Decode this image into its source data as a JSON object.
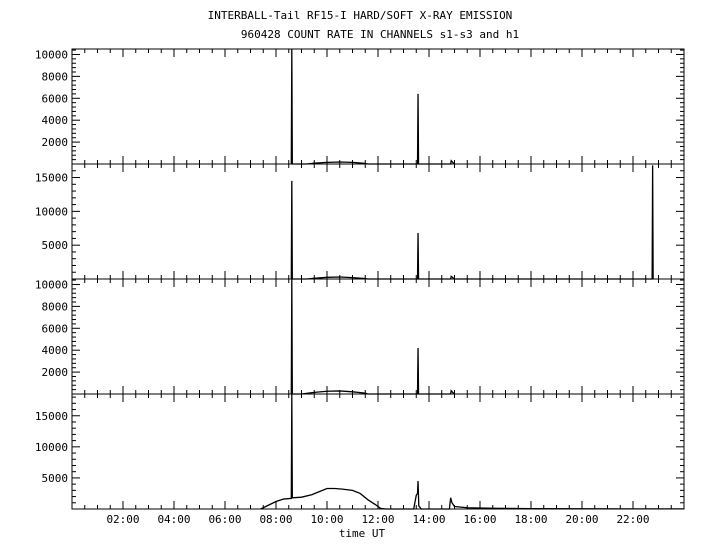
{
  "title": "INTERBALL-Tail RF15-I HARD/SOFT X-RAY EMISSION",
  "subtitle": "960428  COUNT RATE IN CHANNELS s1-s3 and h1",
  "chart_data": {
    "type": "line",
    "xlabel": "time UT",
    "xlim": [
      0,
      24
    ],
    "x_ticks": [
      2,
      4,
      6,
      8,
      10,
      12,
      14,
      16,
      18,
      20,
      22
    ],
    "x_tick_labels": [
      "02:00",
      "04:00",
      "06:00",
      "08:00",
      "10:00",
      "12:00",
      "14:00",
      "16:00",
      "18:00",
      "20:00",
      "22:00"
    ],
    "panels": [
      {
        "name": "s1",
        "ylim": [
          0,
          10500
        ],
        "y_ticks": [
          2000,
          4000,
          6000,
          8000,
          10000
        ],
        "y_tick_labels": [
          "2000",
          "4000",
          "6000",
          "8000",
          "10000"
        ],
        "points": [
          [
            8.6,
            0
          ],
          [
            8.62,
            10500
          ],
          [
            8.64,
            0
          ],
          [
            9.2,
            0
          ],
          [
            9.5,
            80
          ],
          [
            10,
            150
          ],
          [
            10.5,
            180
          ],
          [
            11,
            150
          ],
          [
            11.5,
            60
          ],
          [
            11.6,
            0
          ],
          [
            13.55,
            0
          ],
          [
            13.57,
            6400
          ],
          [
            13.59,
            0
          ],
          [
            14.85,
            0
          ],
          [
            14.87,
            300
          ],
          [
            14.95,
            100
          ],
          [
            15.0,
            0
          ]
        ]
      },
      {
        "name": "s2",
        "ylim": [
          0,
          17000
        ],
        "y_ticks": [
          5000,
          10000,
          15000
        ],
        "y_tick_labels": [
          "5000",
          "10000",
          "15000"
        ],
        "points": [
          [
            8.6,
            0
          ],
          [
            8.62,
            14500
          ],
          [
            8.64,
            0
          ],
          [
            9.2,
            0
          ],
          [
            9.5,
            100
          ],
          [
            10,
            250
          ],
          [
            10.5,
            300
          ],
          [
            11,
            200
          ],
          [
            11.5,
            80
          ],
          [
            11.6,
            0
          ],
          [
            13.55,
            0
          ],
          [
            13.57,
            6800
          ],
          [
            13.59,
            0
          ],
          [
            14.85,
            0
          ],
          [
            14.87,
            400
          ],
          [
            14.95,
            150
          ],
          [
            15.0,
            0
          ],
          [
            22.75,
            0
          ],
          [
            22.77,
            16800
          ],
          [
            22.79,
            0
          ]
        ]
      },
      {
        "name": "s3",
        "ylim": [
          0,
          10500
        ],
        "y_ticks": [
          2000,
          4000,
          6000,
          8000,
          10000
        ],
        "y_tick_labels": [
          "2000",
          "4000",
          "6000",
          "8000",
          "10000"
        ],
        "points": [
          [
            8.6,
            0
          ],
          [
            8.62,
            10500
          ],
          [
            8.64,
            0
          ],
          [
            9.0,
            0
          ],
          [
            9.5,
            150
          ],
          [
            10,
            250
          ],
          [
            10.5,
            280
          ],
          [
            11,
            200
          ],
          [
            11.5,
            80
          ],
          [
            11.6,
            0
          ],
          [
            13.55,
            0
          ],
          [
            13.57,
            4200
          ],
          [
            13.59,
            0
          ],
          [
            14.85,
            0
          ],
          [
            14.87,
            300
          ],
          [
            14.95,
            100
          ],
          [
            15.0,
            0
          ]
        ]
      },
      {
        "name": "h1",
        "ylim": [
          0,
          18500
        ],
        "y_ticks": [
          5000,
          10000,
          15000
        ],
        "y_tick_labels": [
          "5000",
          "10000",
          "15000"
        ],
        "points": [
          [
            7.4,
            0
          ],
          [
            7.7,
            600
          ],
          [
            8.0,
            1200
          ],
          [
            8.3,
            1600
          ],
          [
            8.6,
            1700
          ],
          [
            8.62,
            18500
          ],
          [
            8.64,
            1800
          ],
          [
            9.0,
            1900
          ],
          [
            9.4,
            2300
          ],
          [
            9.7,
            2800
          ],
          [
            10.0,
            3300
          ],
          [
            10.3,
            3300
          ],
          [
            10.6,
            3200
          ],
          [
            11.0,
            3000
          ],
          [
            11.3,
            2500
          ],
          [
            11.6,
            1500
          ],
          [
            11.9,
            700
          ],
          [
            12.1,
            100
          ],
          [
            12.3,
            0
          ],
          [
            13.4,
            0
          ],
          [
            13.5,
            2200
          ],
          [
            13.55,
            2500
          ],
          [
            13.57,
            4500
          ],
          [
            13.6,
            500
          ],
          [
            13.7,
            0
          ],
          [
            14.8,
            0
          ],
          [
            14.85,
            1800
          ],
          [
            14.9,
            1000
          ],
          [
            15.0,
            400
          ],
          [
            15.5,
            200
          ],
          [
            16.5,
            120
          ],
          [
            18,
            60
          ],
          [
            20,
            30
          ],
          [
            22,
            20
          ],
          [
            24,
            15
          ]
        ]
      }
    ]
  }
}
